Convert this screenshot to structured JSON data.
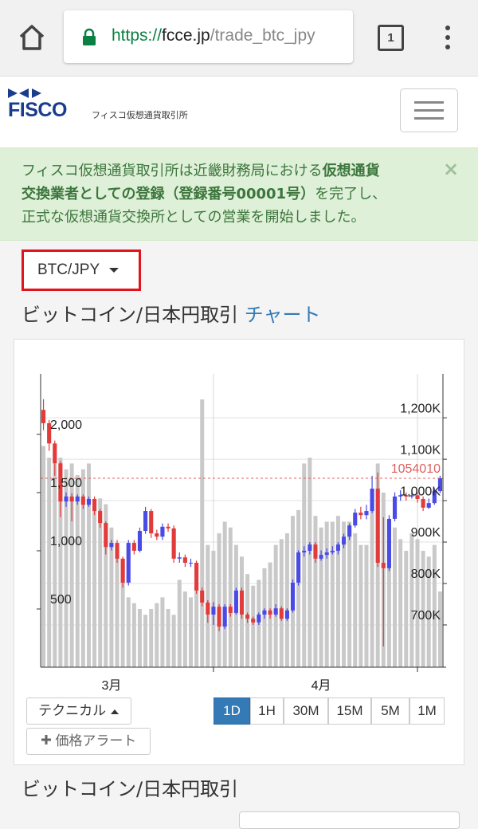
{
  "browser": {
    "url_parts": [
      "https://",
      "fcce.jp",
      "/trade_btc_jpy"
    ],
    "tab_count": 1
  },
  "header": {
    "logo": "FISCO",
    "site_name": "フィスコ仮想通貨取引所"
  },
  "notice": {
    "lines": [
      [
        {
          "text": "フィスコ仮想通貨取引所は近畿財務局における",
          "bold": false
        },
        {
          "text": "仮想通貨",
          "bold": true
        }
      ],
      [
        {
          "text": "交換業者としての登録（登録番号00001号）",
          "bold": true
        },
        {
          "text": "を完了し、",
          "bold": false
        }
      ],
      [
        {
          "text": "正式な仮想通貨交換所としての営業を開始しました。",
          "bold": false
        }
      ]
    ],
    "close": "×"
  },
  "pair_selector": "BTC/JPY",
  "heading": {
    "title": "ビットコイン/日本円取引",
    "link": "チャート"
  },
  "chart_data": {
    "type": "candlestick",
    "xlim": [
      -0.5,
      70.5
    ],
    "xticks": [
      {
        "value": 12,
        "label": "3月"
      },
      {
        "value": 49,
        "label": "4月"
      }
    ],
    "xgrid": [
      30,
      66
    ],
    "ylim": [
      598000,
      1306000
    ],
    "yticks": [
      {
        "value": 700000,
        "label": "700K"
      },
      {
        "value": 800000,
        "label": "800K"
      },
      {
        "value": 900000,
        "label": "900K"
      },
      {
        "value": 1000000,
        "label": "1,000K"
      },
      {
        "value": 1100000,
        "label": "1,100K"
      },
      {
        "value": 1200000,
        "label": "1,200K"
      }
    ],
    "y2lim": [
      0,
      2520
    ],
    "y2ticks": [
      500,
      {
        "value": 1000,
        "label": "1,000"
      },
      {
        "value": 1500,
        "label": "1,500"
      },
      {
        "value": 2000,
        "label": "2,000"
      }
    ],
    "grid": true,
    "up_color": "#4a4ae6",
    "down_color": "#e23b3b",
    "volume_color": "#c9c9c9",
    "last_price": 1054010,
    "last_price_color": "#e06060",
    "open": [
      1219000,
      1187000,
      1138000,
      1090000,
      998000,
      1010000,
      998000,
      1010000,
      990000,
      1004000,
      975000,
      946000,
      888000,
      898000,
      860000,
      802000,
      898000,
      879000,
      927000,
      975000,
      921000,
      913000,
      937000,
      933000,
      860000,
      863000,
      850000,
      850000,
      783000,
      754000,
      725000,
      744000,
      696000,
      744000,
      729000,
      783000,
      725000,
      715000,
      706000,
      725000,
      735000,
      725000,
      740000,
      715000,
      735000,
      802000,
      875000,
      879000,
      894000,
      860000,
      869000,
      875000,
      879000,
      894000,
      913000,
      940000,
      971000,
      965000,
      975000,
      1029000,
      850000,
      837000,
      956000,
      1010000,
      1013000,
      1010000,
      1013000,
      1004000,
      983000,
      994000,
      1023000
    ],
    "high": [
      1245000,
      1195000,
      1145000,
      1095000,
      1020000,
      1018000,
      1015000,
      1015000,
      1010000,
      1010000,
      980000,
      950000,
      905000,
      905000,
      865000,
      905000,
      905000,
      935000,
      985000,
      980000,
      930000,
      945000,
      945000,
      940000,
      875000,
      870000,
      860000,
      855000,
      790000,
      760000,
      755000,
      750000,
      750000,
      750000,
      790000,
      790000,
      730000,
      720000,
      730000,
      740000,
      740000,
      750000,
      745000,
      740000,
      810000,
      880000,
      890000,
      900000,
      900000,
      880000,
      885000,
      890000,
      900000,
      920000,
      945000,
      980000,
      985000,
      990000,
      1060000,
      1068000,
      960000,
      965000,
      1020000,
      1025000,
      1020000,
      1020000,
      1020000,
      1010000,
      1005000,
      1030000,
      1060000
    ],
    "low": [
      1170000,
      1120000,
      1060000,
      960000,
      985000,
      950000,
      990000,
      980000,
      985000,
      965000,
      935000,
      870000,
      880000,
      850000,
      790000,
      795000,
      870000,
      875000,
      920000,
      910000,
      905000,
      905000,
      925000,
      850000,
      850000,
      840000,
      840000,
      775000,
      745000,
      705000,
      700000,
      685000,
      690000,
      720000,
      725000,
      715000,
      705000,
      700000,
      700000,
      715000,
      715000,
      720000,
      710000,
      710000,
      730000,
      795000,
      865000,
      870000,
      850000,
      855000,
      860000,
      870000,
      870000,
      885000,
      905000,
      935000,
      955000,
      955000,
      970000,
      840000,
      648000,
      830000,
      950000,
      1000000,
      1000000,
      1005000,
      995000,
      975000,
      980000,
      990000,
      1018000
    ],
    "close": [
      1187000,
      1138000,
      1090000,
      998000,
      1010000,
      998000,
      1010000,
      990000,
      1004000,
      975000,
      946000,
      888000,
      898000,
      860000,
      802000,
      898000,
      879000,
      927000,
      975000,
      921000,
      913000,
      937000,
      933000,
      860000,
      863000,
      850000,
      850000,
      783000,
      754000,
      725000,
      744000,
      696000,
      744000,
      729000,
      783000,
      725000,
      715000,
      706000,
      725000,
      735000,
      725000,
      740000,
      715000,
      735000,
      802000,
      875000,
      879000,
      894000,
      860000,
      869000,
      875000,
      879000,
      894000,
      913000,
      940000,
      971000,
      965000,
      975000,
      1029000,
      850000,
      837000,
      956000,
      1010000,
      1013000,
      1010000,
      1013000,
      1004000,
      983000,
      994000,
      1023000,
      1054010
    ],
    "volume": [
      1900,
      1800,
      1750,
      1800,
      1700,
      1750,
      1650,
      1700,
      1750,
      1400,
      1450,
      1400,
      1200,
      1000,
      900,
      600,
      550,
      500,
      450,
      500,
      550,
      600,
      500,
      450,
      750,
      650,
      600,
      700,
      2300,
      1050,
      1000,
      1150,
      1250,
      1200,
      1050,
      950,
      800,
      700,
      750,
      850,
      900,
      1050,
      1100,
      1150,
      1300,
      1350,
      1750,
      1800,
      1300,
      1200,
      1250,
      1250,
      1300,
      1250,
      1250,
      1150,
      1050,
      1050,
      1450,
      1750,
      1500,
      1250,
      1200,
      1100,
      1000,
      1150,
      1100,
      1000,
      950,
      1050,
      650
    ]
  },
  "controls": {
    "indicator_menu": "テクニカル",
    "intervals": [
      "1D",
      "1H",
      "30M",
      "15M",
      "5M",
      "1M"
    ],
    "active_interval": "1D",
    "alert_button": "価格アラート"
  },
  "section_title": "ビットコイン/日本円取引"
}
